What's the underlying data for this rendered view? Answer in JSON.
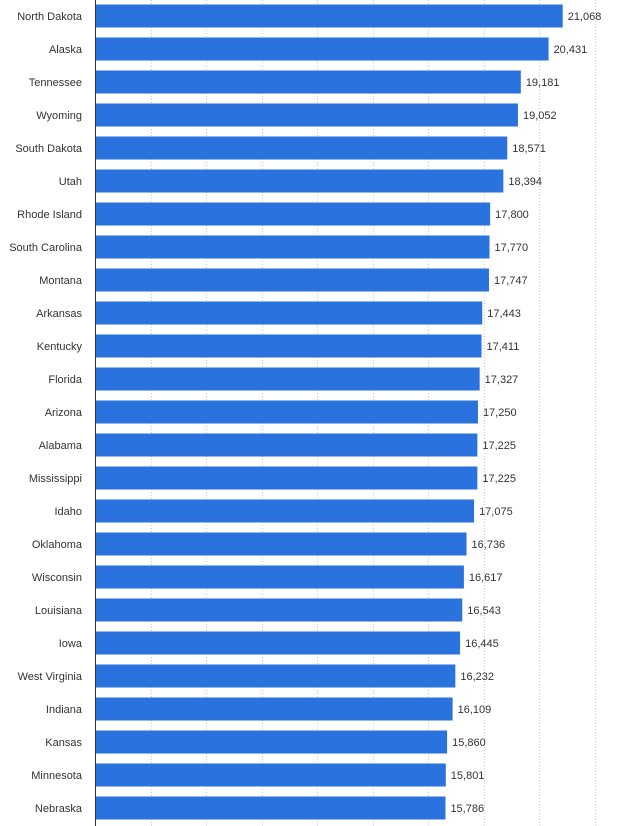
{
  "chart_data": {
    "type": "bar",
    "orientation": "horizontal",
    "categories": [
      "North Dakota",
      "Alaska",
      "Tennessee",
      "Wyoming",
      "South Dakota",
      "Utah",
      "Rhode Island",
      "South Carolina",
      "Montana",
      "Arkansas",
      "Kentucky",
      "Florida",
      "Arizona",
      "Alabama",
      "Mississippi",
      "Idaho",
      "Oklahoma",
      "Wisconsin",
      "Louisiana",
      "Iowa",
      "West Virginia",
      "Indiana",
      "Kansas",
      "Minnesota",
      "Nebraska"
    ],
    "values": [
      21068,
      20431,
      19181,
      19052,
      18571,
      18394,
      17800,
      17770,
      17747,
      17443,
      17411,
      17327,
      17250,
      17225,
      17225,
      17075,
      16736,
      16617,
      16543,
      16445,
      16232,
      16109,
      15860,
      15801,
      15786
    ],
    "value_labels": [
      "21,068",
      "20,431",
      "19,181",
      "19,052",
      "18,571",
      "18,394",
      "17,800",
      "17,770",
      "17,747",
      "17,443",
      "17,411",
      "17,327",
      "17,250",
      "17,225",
      "17,225",
      "17,075",
      "16,736",
      "16,617",
      "16,543",
      "16,445",
      "16,232",
      "16,109",
      "15,860",
      "15,801",
      "15,786"
    ],
    "xlim": [
      0,
      25000
    ],
    "grid": true,
    "bar_color": "#2a72dd",
    "grid_color": "#cccccc"
  }
}
